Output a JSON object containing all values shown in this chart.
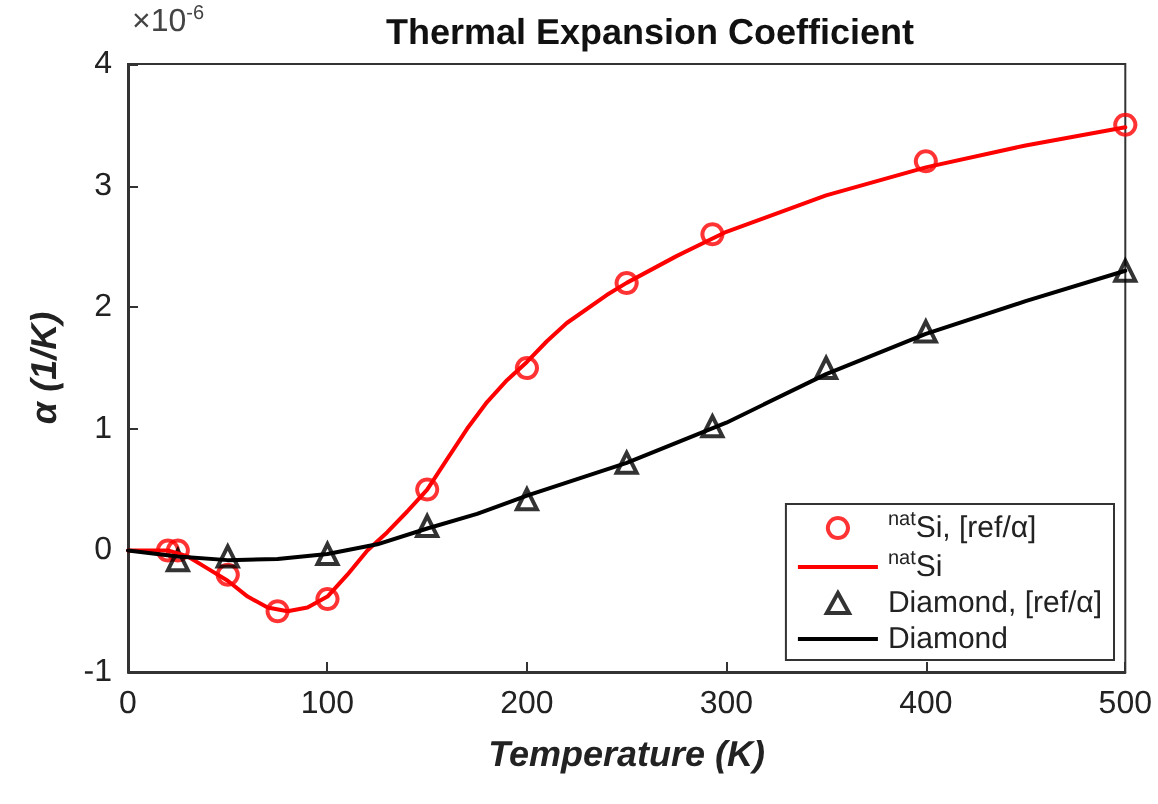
{
  "chart_data": {
    "type": "line",
    "title": "Thermal Expansion Coefficient",
    "xlabel": "Temperature (K)",
    "ylabel": "α (1/K)",
    "annotations": [
      "×10$^{-6}$"
    ],
    "xlim": [
      0,
      500
    ],
    "xticks": [
      0,
      100,
      200,
      300,
      400,
      500
    ],
    "ylim": [
      -1,
      4
    ],
    "yticks": [
      -1,
      0,
      1,
      2,
      3,
      4
    ],
    "grid": false,
    "legend": "bottom right",
    "series": [
      {
        "name": "$^{nat}$Si, [ref/α]",
        "type": "scatter",
        "marker": "circle",
        "color": "#ff0000",
        "x": [
          20,
          25,
          50,
          75,
          100,
          150,
          200,
          250,
          293,
          400,
          500
        ],
        "values": [
          0,
          0,
          -0.2,
          -0.5,
          -0.4,
          0.5,
          1.5,
          2.2,
          2.6,
          3.2,
          3.5
        ]
      },
      {
        "name": "$^{nat}$Si",
        "type": "line",
        "marker": "none",
        "line_style": "solid",
        "color": "#ff0000",
        "x": [
          0,
          10,
          20,
          30,
          40,
          50,
          60,
          70,
          80,
          90,
          100,
          110,
          120,
          130,
          140,
          150,
          160,
          170,
          180,
          190,
          200,
          210,
          220,
          240,
          250,
          275,
          300,
          350,
          400,
          450,
          500
        ],
        "values": [
          0,
          0,
          0,
          -0.05,
          -0.15,
          -0.25,
          -0.38,
          -0.47,
          -0.5,
          -0.47,
          -0.38,
          -0.2,
          0,
          0.15,
          0.32,
          0.5,
          0.75,
          1.0,
          1.22,
          1.4,
          1.55,
          1.72,
          1.87,
          2.1,
          2.2,
          2.42,
          2.62,
          2.92,
          3.15,
          3.33,
          3.48
        ]
      },
      {
        "name": "Diamond, [ref/α]",
        "type": "scatter",
        "marker": "triangle",
        "color": "#000000",
        "x": [
          25,
          50,
          100,
          150,
          200,
          250,
          293,
          350,
          400,
          500
        ],
        "values": [
          -0.08,
          -0.05,
          -0.03,
          0.2,
          0.42,
          0.72,
          1.02,
          1.5,
          1.8,
          2.3
        ]
      },
      {
        "name": "Diamond",
        "type": "line",
        "marker": "none",
        "line_style": "solid",
        "color": "#000000",
        "x": [
          0,
          25,
          50,
          75,
          100,
          125,
          150,
          175,
          200,
          250,
          300,
          350,
          400,
          450,
          500
        ],
        "values": [
          0,
          -0.05,
          -0.08,
          -0.07,
          -0.03,
          0.05,
          0.18,
          0.3,
          0.45,
          0.72,
          1.05,
          1.45,
          1.78,
          2.05,
          2.3
        ]
      }
    ]
  }
}
